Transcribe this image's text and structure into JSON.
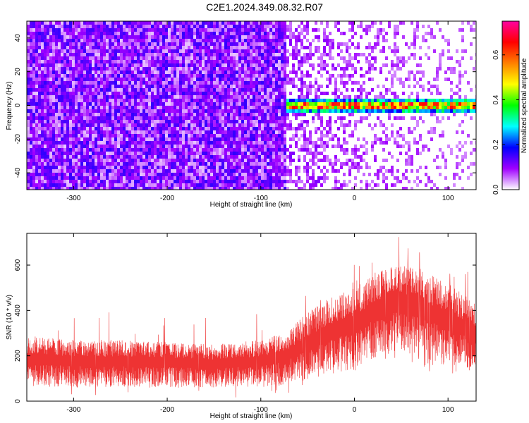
{
  "title": "C2E1.2024.349.08.32.R07",
  "colors": {
    "snr_trace": "#ee3333",
    "spectrogram_low": "#8a2be2",
    "signal_band": "#00e080"
  },
  "chart_data": [
    {
      "type": "heatmap",
      "xlabel": "Height of straight line (km)",
      "ylabel": "Frequency (Hz)",
      "xlim": [
        -350,
        130
      ],
      "ylim": [
        -50,
        50
      ],
      "x_ticks": [
        -300,
        -200,
        -100,
        0,
        100
      ],
      "y_ticks": [
        -40,
        -20,
        0,
        20,
        40
      ],
      "colorbar": {
        "label": "Normalized spectral amplitude",
        "range": [
          0,
          0.75
        ],
        "ticks": [
          0.0,
          0.2,
          0.4,
          0.6
        ],
        "colormap": [
          "#ffffff",
          "#a000ff",
          "#0000ff",
          "#00ffff",
          "#00ff00",
          "#ffff00",
          "#ff8000",
          "#ff0000",
          "#ff00a0"
        ]
      },
      "noise_region": {
        "x_range": [
          -350,
          -75
        ],
        "typical_amplitude": 0.12
      },
      "faint_region": {
        "x_range": [
          -75,
          130
        ],
        "typical_amplitude": 0.04
      },
      "signal_band": {
        "x_range": [
          -75,
          130
        ],
        "center_frequency_hz": 1,
        "bandwidth_hz": 5,
        "peak_amplitude": 0.7
      },
      "grid": false
    },
    {
      "type": "line",
      "xlabel": "Height of straight line (km)",
      "ylabel": "SNR (10 * v/v)",
      "xlim": [
        -350,
        130
      ],
      "ylim": [
        0,
        740
      ],
      "x_ticks": [
        -300,
        -200,
        -100,
        0,
        100
      ],
      "y_ticks": [
        0,
        200,
        400,
        600
      ],
      "envelope": {
        "x": [
          -350,
          -300,
          -250,
          -200,
          -150,
          -100,
          -75,
          -50,
          -25,
          0,
          25,
          50,
          75,
          100,
          130
        ],
        "lower": [
          60,
          60,
          60,
          60,
          60,
          60,
          70,
          90,
          120,
          140,
          200,
          220,
          190,
          150,
          140
        ],
        "upper": [
          290,
          270,
          270,
          260,
          250,
          270,
          300,
          390,
          460,
          500,
          580,
          620,
          570,
          520,
          430
        ]
      },
      "peak_snr": 730,
      "grid": false
    }
  ]
}
